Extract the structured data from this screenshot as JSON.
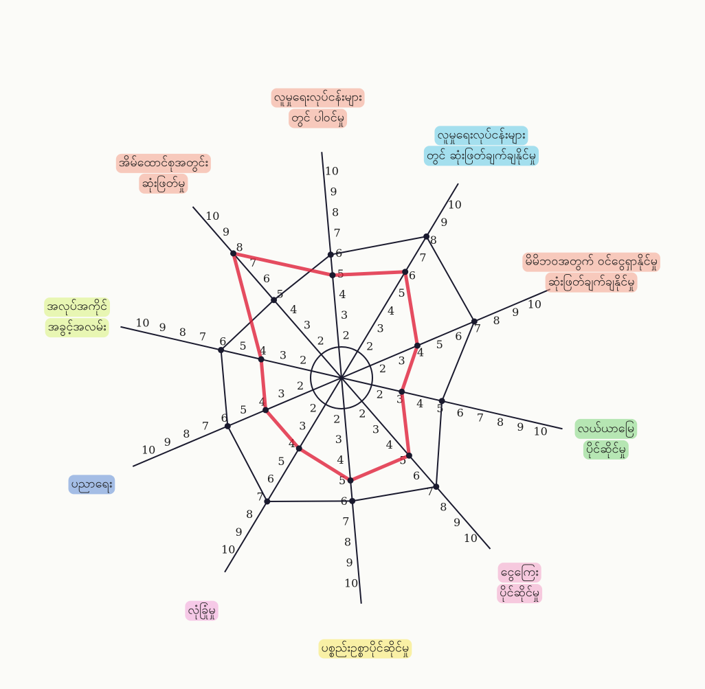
{
  "chart_data": {
    "type": "radar",
    "axes": [
      [
        "လူမှုရေးလုပ်ငန်းများ",
        "တွင် ပါဝင်မှု"
      ],
      [
        "လူမှုရေးလုပ်ငန်းများ",
        "တွင် ဆုံးဖြတ်ချက်ချနိုင်မှု"
      ],
      [
        "မိမိဘဝအတွက် ဝင်ငွေရှာနိုင်မှု",
        "ဆုံးဖြတ်ချက်ချနိုင်မှု"
      ],
      [
        "လယ်ယာမြေ",
        "ပိုင်ဆိုင်မှု"
      ],
      [
        "ငွေကြေး",
        "ပိုင်ဆိုင်မှု"
      ],
      [
        "ပစ္စည်းဥစ္စာပိုင်ဆိုင်မှု"
      ],
      [
        "လုံခြုံမှု"
      ],
      [
        "ပညာရေး"
      ],
      [
        "အလုပ်အကိုင်",
        "အခွင့်အလမ်း"
      ],
      [
        "အိမ်ထောင်စုအတွင်း",
        "ဆုံးဖြတ်မှု"
      ]
    ],
    "label_colors": [
      "#f4a08a",
      "#5cc8e6",
      "#f4a08a",
      "#7dd67a",
      "#f2a0c8",
      "#f7e860",
      "#f2a0d8",
      "#5c8ad6",
      "#d8f27a",
      "#f4a08a"
    ],
    "rlim": [
      0,
      10
    ],
    "rticks": [
      2,
      3,
      4,
      5,
      6,
      7,
      8,
      9,
      10
    ],
    "series": [
      {
        "color": "#1a1a2e",
        "values": [
          6,
          8,
          7,
          5,
          7,
          6,
          7,
          6,
          6,
          5
        ]
      },
      {
        "color": "#e0203a",
        "values": [
          5,
          6,
          4,
          3,
          5,
          5,
          4,
          4,
          4,
          8
        ]
      }
    ]
  }
}
